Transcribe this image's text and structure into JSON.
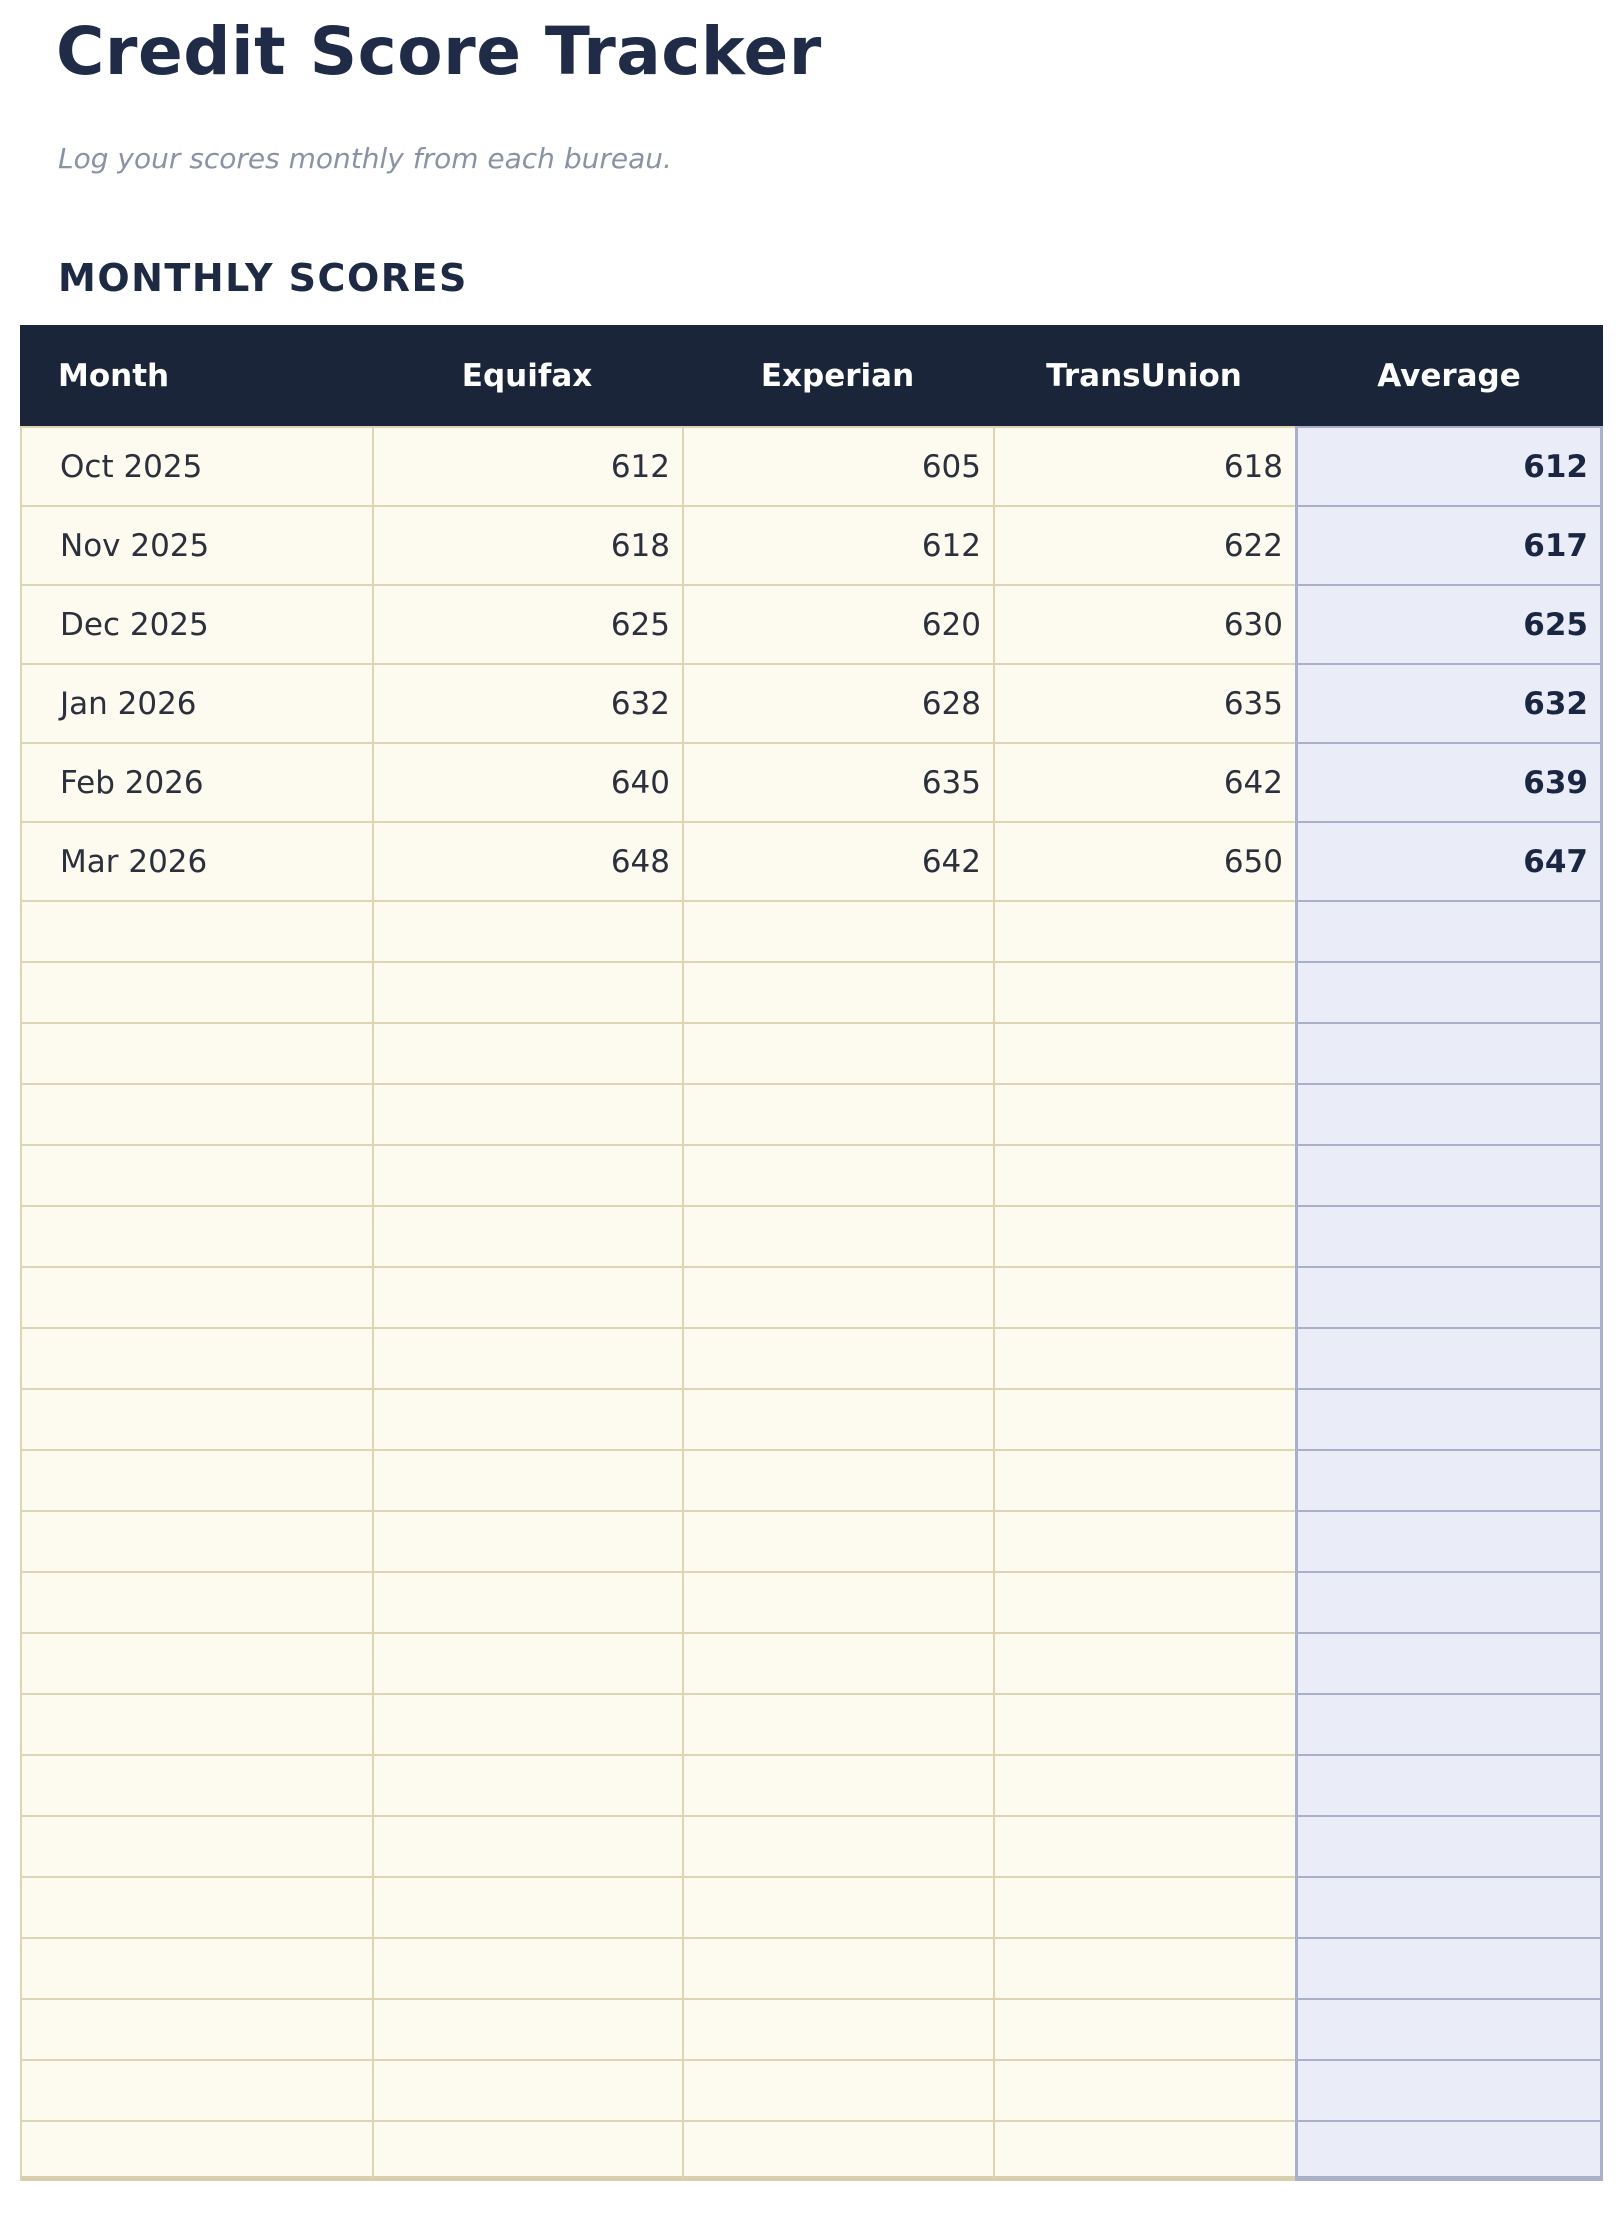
{
  "page": {
    "title": "Credit Score Tracker",
    "subtitle": "Log your scores monthly from each bureau.",
    "section_heading": "MONTHLY SCORES"
  },
  "colors": {
    "header_bg": "#1a2539",
    "heading_navy": "#1f2b47",
    "cell_bg": "#fdfaef",
    "cell_border": "#ded5b4",
    "average_bg": "#eaedf7",
    "average_border": "#a8b1c8",
    "average_text": "#1b2742",
    "body_text": "#2b303c",
    "subtitle_text": "#8a93a4"
  },
  "table": {
    "columns": [
      {
        "key": "month",
        "label": "Month"
      },
      {
        "key": "equifax",
        "label": "Equifax"
      },
      {
        "key": "experian",
        "label": "Experian"
      },
      {
        "key": "transunion",
        "label": "TransUnion"
      },
      {
        "key": "average",
        "label": "Average"
      }
    ],
    "rows": [
      {
        "month": "Oct 2025",
        "equifax": "612",
        "experian": "605",
        "transunion": "618",
        "average": "612"
      },
      {
        "month": "Nov 2025",
        "equifax": "618",
        "experian": "612",
        "transunion": "622",
        "average": "617"
      },
      {
        "month": "Dec 2025",
        "equifax": "625",
        "experian": "620",
        "transunion": "630",
        "average": "625"
      },
      {
        "month": "Jan 2026",
        "equifax": "632",
        "experian": "628",
        "transunion": "635",
        "average": "632"
      },
      {
        "month": "Feb 2026",
        "equifax": "640",
        "experian": "635",
        "transunion": "642",
        "average": "639"
      },
      {
        "month": "Mar 2026",
        "equifax": "648",
        "experian": "642",
        "transunion": "650",
        "average": "647"
      }
    ],
    "empty_row_count": 21
  }
}
